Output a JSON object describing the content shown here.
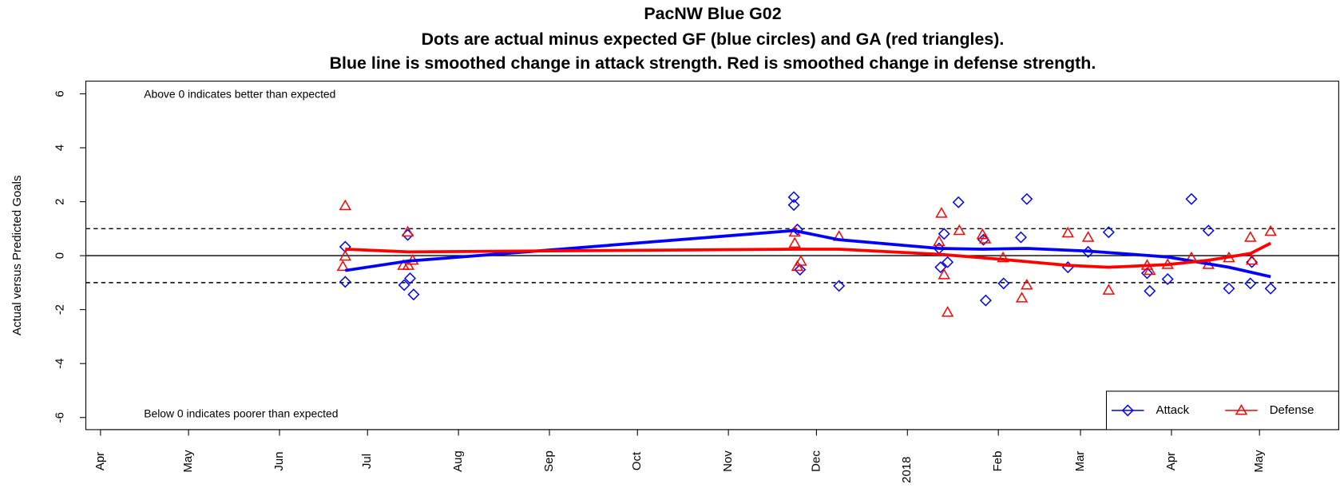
{
  "chart_data": {
    "type": "scatter",
    "title": "PacNW Blue G02",
    "subtitle": [
      "Dots are actual minus expected GF (blue circles) and GA (red triangles).",
      "Blue line is smoothed change in attack strength. Red is smoothed change in defense strength."
    ],
    "ylabel": "Actual versus Predicted Goals",
    "annotations": [
      "Above 0 indicates better than expected",
      "Below 0 indicates poorer than expected"
    ],
    "xlim": [
      -5,
      422
    ],
    "ylim": [
      -6.45,
      6.47
    ],
    "xticks": [
      {
        "value": 0,
        "label": "Apr"
      },
      {
        "value": 30,
        "label": "May"
      },
      {
        "value": 61,
        "label": "Jun"
      },
      {
        "value": 91,
        "label": "Jul"
      },
      {
        "value": 122,
        "label": "Aug"
      },
      {
        "value": 153,
        "label": "Sep"
      },
      {
        "value": 183,
        "label": "Oct"
      },
      {
        "value": 214,
        "label": "Nov"
      },
      {
        "value": 244,
        "label": "Dec"
      },
      {
        "value": 275,
        "label": "2018"
      },
      {
        "value": 306,
        "label": "Feb"
      },
      {
        "value": 334,
        "label": "Mar"
      },
      {
        "value": 365,
        "label": "Apr"
      },
      {
        "value": 395,
        "label": "May"
      }
    ],
    "yticks": [
      -6,
      -4,
      -2,
      0,
      2,
      4,
      6
    ],
    "hlines": [
      {
        "value": 0,
        "dashed": false
      },
      {
        "value": 1,
        "dashed": true
      },
      {
        "value": -1,
        "dashed": true
      }
    ],
    "legend": "bottomright",
    "series": [
      {
        "name": "Attack",
        "color": "#0000ff",
        "marker": "diamond",
        "x": [
          83.4,
          83.4,
          104.7,
          103.5,
          105.5,
          106.7,
          236.3,
          236.3,
          237.5,
          238.4,
          251.7,
          285.8,
          287.5,
          286.3,
          288.7,
          292.4,
          300.9,
          301.7,
          307.8,
          313.7,
          315.7,
          329.7,
          336.6,
          343.6,
          356.7,
          357.6,
          363.7,
          371.8,
          377.6,
          384.6,
          391.9,
          392.4,
          398.8
        ],
        "values": [
          0.33,
          -0.97,
          0.77,
          -1.09,
          -0.84,
          -1.44,
          2.17,
          1.88,
          0.97,
          -0.52,
          -1.12,
          0.27,
          0.81,
          -0.43,
          -0.24,
          1.98,
          0.59,
          -1.66,
          -1.03,
          0.68,
          2.1,
          -0.43,
          0.14,
          0.87,
          -0.65,
          -1.31,
          -0.87,
          2.1,
          0.93,
          -1.22,
          -1.03,
          -0.24,
          -1.22
        ]
      },
      {
        "name": "Defense",
        "color": "#ff0000",
        "marker": "triangle",
        "x": [
          83.4,
          82.6,
          83.4,
          104.7,
          103.2,
          104.9,
          106.4,
          236.6,
          236.6,
          237.5,
          238.7,
          251.7,
          286.6,
          285.8,
          287.5,
          288.7,
          292.7,
          300.6,
          301.5,
          307.6,
          314,
          315.7,
          329.7,
          336.6,
          343.6,
          356.7,
          357.6,
          363.7,
          371.8,
          377.6,
          384.6,
          391.9,
          392.4,
          398.8
        ],
        "values": [
          1.85,
          -0.4,
          -0.02,
          0.87,
          -0.36,
          -0.36,
          -0.17,
          0.87,
          0.46,
          -0.4,
          -0.21,
          0.71,
          1.57,
          0.52,
          -0.71,
          -2.1,
          0.93,
          0.78,
          0.62,
          -0.08,
          -1.57,
          -1.09,
          0.84,
          0.68,
          -1.28,
          -0.36,
          -0.55,
          -0.33,
          -0.08,
          -0.33,
          -0.08,
          0.68,
          -0.17,
          0.9
        ]
      }
    ],
    "lines": [
      {
        "color": "#0000ff",
        "x": [
          83.4,
          104.7,
          153.2,
          236.3,
          251.7,
          285.8,
          300.6,
          315.7,
          336.6,
          363.7,
          384.6,
          398.8
        ],
        "values": [
          -0.55,
          -0.2,
          0.21,
          0.93,
          0.59,
          0.27,
          0.24,
          0.27,
          0.17,
          -0.05,
          -0.43,
          -0.78
        ]
      },
      {
        "color": "#ff0000",
        "x": [
          83.4,
          104.7,
          236.3,
          251.7,
          285.8,
          307.6,
          329.7,
          343.6,
          363.7,
          377.6,
          391.9,
          398.8
        ],
        "values": [
          0.24,
          0.14,
          0.24,
          0.24,
          0.05,
          -0.14,
          -0.36,
          -0.43,
          -0.33,
          -0.17,
          0.08,
          0.46
        ]
      }
    ]
  }
}
